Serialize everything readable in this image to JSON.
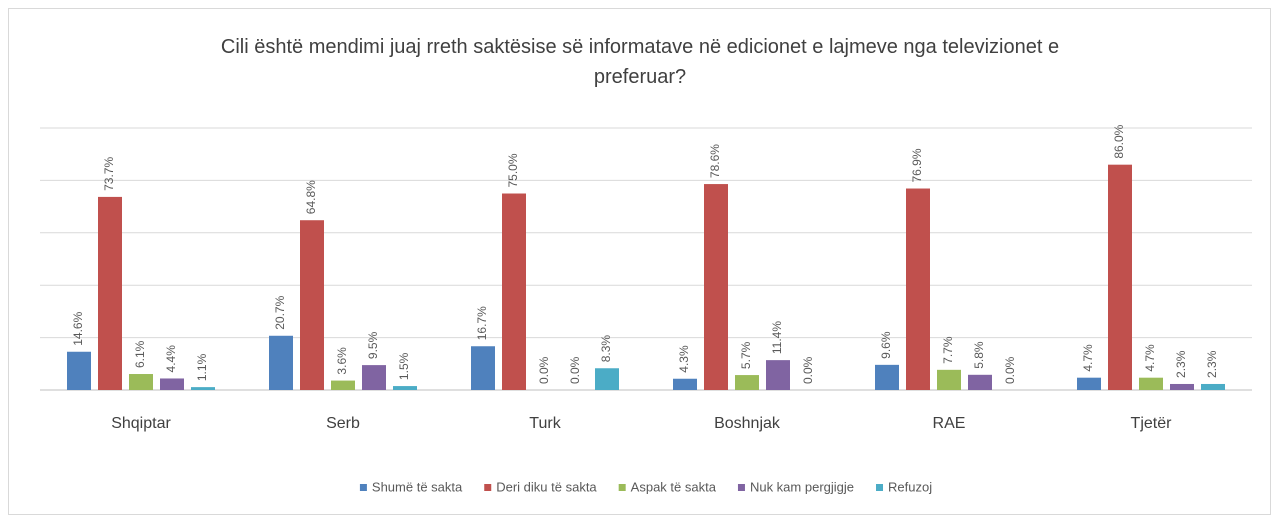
{
  "chart_data": {
    "type": "bar",
    "title": "Cili është mendimi juaj rreth saktësise së informatave në edicionet e lajmeve nga televizionet e preferuar?",
    "categories": [
      "Shqiptar",
      "Serb",
      "Turk",
      "Boshnjak",
      "RAE",
      "Tjetër"
    ],
    "series": [
      {
        "name": "Shumë të sakta",
        "color": "#4f81bd",
        "values": [
          14.6,
          20.7,
          16.7,
          4.3,
          9.6,
          4.7
        ],
        "value_labels": [
          "14.6%",
          "20.7%",
          "16.7%",
          "4.3%",
          "9.6%",
          "4.7%"
        ]
      },
      {
        "name": "Deri diku të sakta",
        "color": "#c0504d",
        "values": [
          73.7,
          64.8,
          75.0,
          78.6,
          76.9,
          86.0
        ],
        "value_labels": [
          "73.7%",
          "64.8%",
          "75.0%",
          "78.6%",
          "76.9%",
          "86.0%"
        ]
      },
      {
        "name": "Aspak të sakta",
        "color": "#9bbb59",
        "values": [
          6.1,
          3.6,
          0.0,
          5.7,
          7.7,
          4.7
        ],
        "value_labels": [
          "6.1%",
          "3.6%",
          "0.0%",
          "5.7%",
          "7.7%",
          "4.7%"
        ]
      },
      {
        "name": "Nuk kam pergjigje",
        "color": "#8064a2",
        "values": [
          4.4,
          9.5,
          0.0,
          11.4,
          5.8,
          2.3
        ],
        "value_labels": [
          "4.4%",
          "9.5%",
          "0.0%",
          "11.4%",
          "5.8%",
          "2.3%"
        ]
      },
      {
        "name": "Refuzoj",
        "color": "#4bacc6",
        "values": [
          1.1,
          1.5,
          8.3,
          0.0,
          0.0,
          2.3
        ],
        "value_labels": [
          "1.1%",
          "1.5%",
          "8.3%",
          "0.0%",
          "0.0%",
          "2.3%"
        ]
      }
    ],
    "ylim": [
      0,
      100
    ],
    "yticks": [
      0,
      20,
      40,
      60,
      80,
      100
    ],
    "grid": true,
    "legend": "bottom"
  }
}
